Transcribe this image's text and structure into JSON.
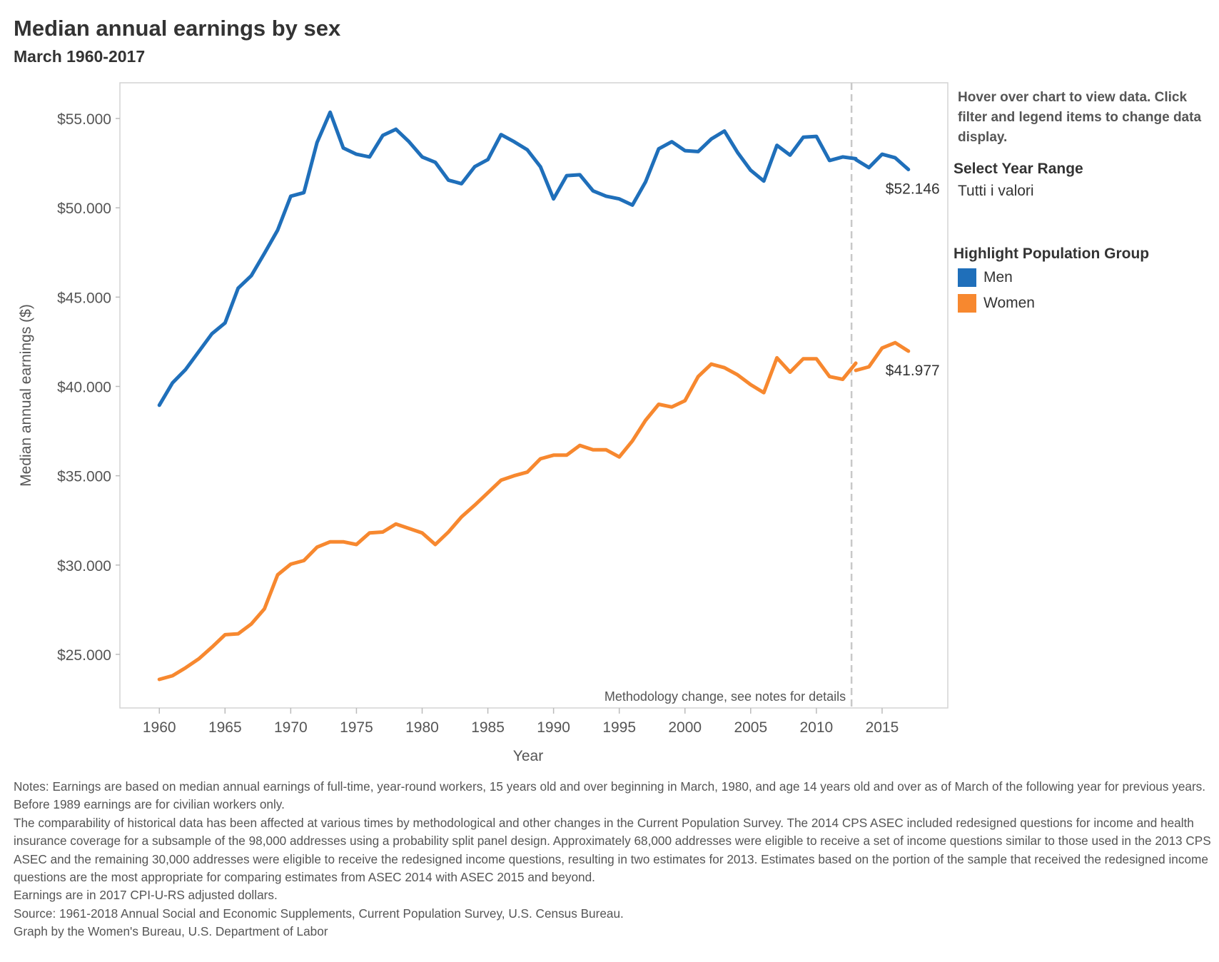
{
  "title": "Median annual earnings by sex",
  "subtitle": "March 1960-2017",
  "sidebar": {
    "hint": "Hover over chart to view data. Click filter and legend items to change data display.",
    "year_range_title": "Select Year Range",
    "year_range_value": "Tutti i valori",
    "highlight_title": "Highlight Population Group",
    "legend": [
      {
        "label": "Men",
        "color": "#1f6fba"
      },
      {
        "label": "Women",
        "color": "#f7882f"
      }
    ]
  },
  "chart_data": {
    "type": "line",
    "title": "Median annual earnings by sex",
    "subtitle": "March 1960-2017",
    "xlabel": "Year",
    "ylabel": "Median annual earnings ($)",
    "xlim": [
      1957,
      2020
    ],
    "ylim": [
      22000,
      57000
    ],
    "x_ticks": [
      1960,
      1965,
      1970,
      1975,
      1980,
      1985,
      1990,
      1995,
      2000,
      2005,
      2010,
      2015
    ],
    "y_ticks": [
      25000,
      30000,
      35000,
      40000,
      45000,
      50000,
      55000
    ],
    "y_tick_labels": [
      "$25.000",
      "$30.000",
      "$35.000",
      "$40.000",
      "$45.000",
      "$50.000",
      "$55.000"
    ],
    "x_tick_labels": [
      "1960",
      "1965",
      "1970",
      "1975",
      "1980",
      "1985",
      "1990",
      "1995",
      "2000",
      "2005",
      "2010",
      "2015"
    ],
    "methodology_change_year": 2013,
    "annotation": "Methodology change, see notes for details",
    "grid": false,
    "legend_position": "right",
    "series": [
      {
        "name": "Men",
        "color": "#1f6fba",
        "end_label": "$52.146",
        "segments": [
          {
            "x": [
              1960,
              1961,
              1962,
              1963,
              1964,
              1965,
              1966,
              1967,
              1968,
              1969,
              1970,
              1971,
              1972,
              1973,
              1974,
              1975,
              1976,
              1977,
              1978,
              1979,
              1980,
              1981,
              1982,
              1983,
              1984,
              1985,
              1986,
              1987,
              1988,
              1989,
              1990,
              1991,
              1992,
              1993,
              1994,
              1995,
              1996,
              1997,
              1998,
              1999,
              2000,
              2001,
              2002,
              2003,
              2004,
              2005,
              2006,
              2007,
              2008,
              2009,
              2010,
              2011,
              2012,
              2013
            ],
            "y": [
              38950,
              40200,
              40950,
              41950,
              42950,
              43550,
              45500,
              46200,
              47450,
              48750,
              50650,
              50850,
              53650,
              55350,
              53350,
              53000,
              52850,
              54050,
              54400,
              53700,
              52850,
              52550,
              51550,
              51350,
              52300,
              52700,
              54100,
              53700,
              53250,
              52300,
              50500,
              51800,
              51850,
              50950,
              50650,
              50500,
              50150,
              51450,
              53300,
              53700,
              53200,
              53150,
              53850,
              54300,
              53100,
              52100,
              51500,
              53500,
              52950,
              53950,
              54000,
              52650,
              52850,
              52750
            ]
          },
          {
            "x": [
              2013,
              2014,
              2015,
              2016,
              2017
            ],
            "y": [
              52700,
              52250,
              53000,
              52800,
              52146
            ]
          }
        ]
      },
      {
        "name": "Women",
        "color": "#f7882f",
        "end_label": "$41.977",
        "segments": [
          {
            "x": [
              1960,
              1961,
              1962,
              1963,
              1964,
              1965,
              1966,
              1967,
              1968,
              1969,
              1970,
              1971,
              1972,
              1973,
              1974,
              1975,
              1976,
              1977,
              1978,
              1979,
              1980,
              1981,
              1982,
              1983,
              1984,
              1985,
              1986,
              1987,
              1988,
              1989,
              1990,
              1991,
              1992,
              1993,
              1994,
              1995,
              1996,
              1997,
              1998,
              1999,
              2000,
              2001,
              2002,
              2003,
              2004,
              2005,
              2006,
              2007,
              2008,
              2009,
              2010,
              2011,
              2012,
              2013
            ],
            "y": [
              23600,
              23800,
              24250,
              24750,
              25400,
              26100,
              26150,
              26700,
              27550,
              29450,
              30050,
              30250,
              31000,
              31300,
              31300,
              31150,
              31800,
              31850,
              32300,
              32050,
              31800,
              31150,
              31850,
              32700,
              33350,
              34050,
              34750,
              35000,
              35200,
              35950,
              36150,
              36150,
              36700,
              36450,
              36450,
              36050,
              36950,
              38100,
              39000,
              38850,
              39200,
              40550,
              41250,
              41050,
              40650,
              40100,
              39650,
              41600,
              40800,
              41550,
              41550,
              40550,
              40400,
              41300
            ]
          },
          {
            "x": [
              2013,
              2014,
              2015,
              2016,
              2017
            ],
            "y": [
              40900,
              41100,
              42150,
              42450,
              41977
            ]
          }
        ]
      }
    ]
  },
  "notes": [
    "Notes: Earnings are based on median annual earnings of full-time, year-round workers, 15 years old and over beginning in March, 1980, and age 14 years old and over as of March of the following year for previous years. Before 1989 earnings are for civilian workers only.",
    "The comparability of historical data has been affected at various times by methodological and other changes in the Current Population Survey. The 2014 CPS ASEC included redesigned questions for income and health insurance coverage for a subsample of the 98,000 addresses using a probability split panel design. Approximately 68,000 addresses were eligible to receive a set of income questions similar to those used in the 2013 CPS ASEC and the remaining 30,000 addresses were eligible to receive the redesigned income questions, resulting in two estimates for 2013. Estimates based on the portion of the sample that received the redesigned income questions are the most appropriate for comparing estimates from ASEC 2014 with ASEC 2015 and beyond.",
    "Earnings are in 2017 CPI-U-RS adjusted dollars.",
    "Source: 1961-2018 Annual Social and Economic Supplements, Current Population Survey, U.S. Census Bureau.",
    "Graph by the Women's Bureau, U.S. Department of Labor"
  ]
}
